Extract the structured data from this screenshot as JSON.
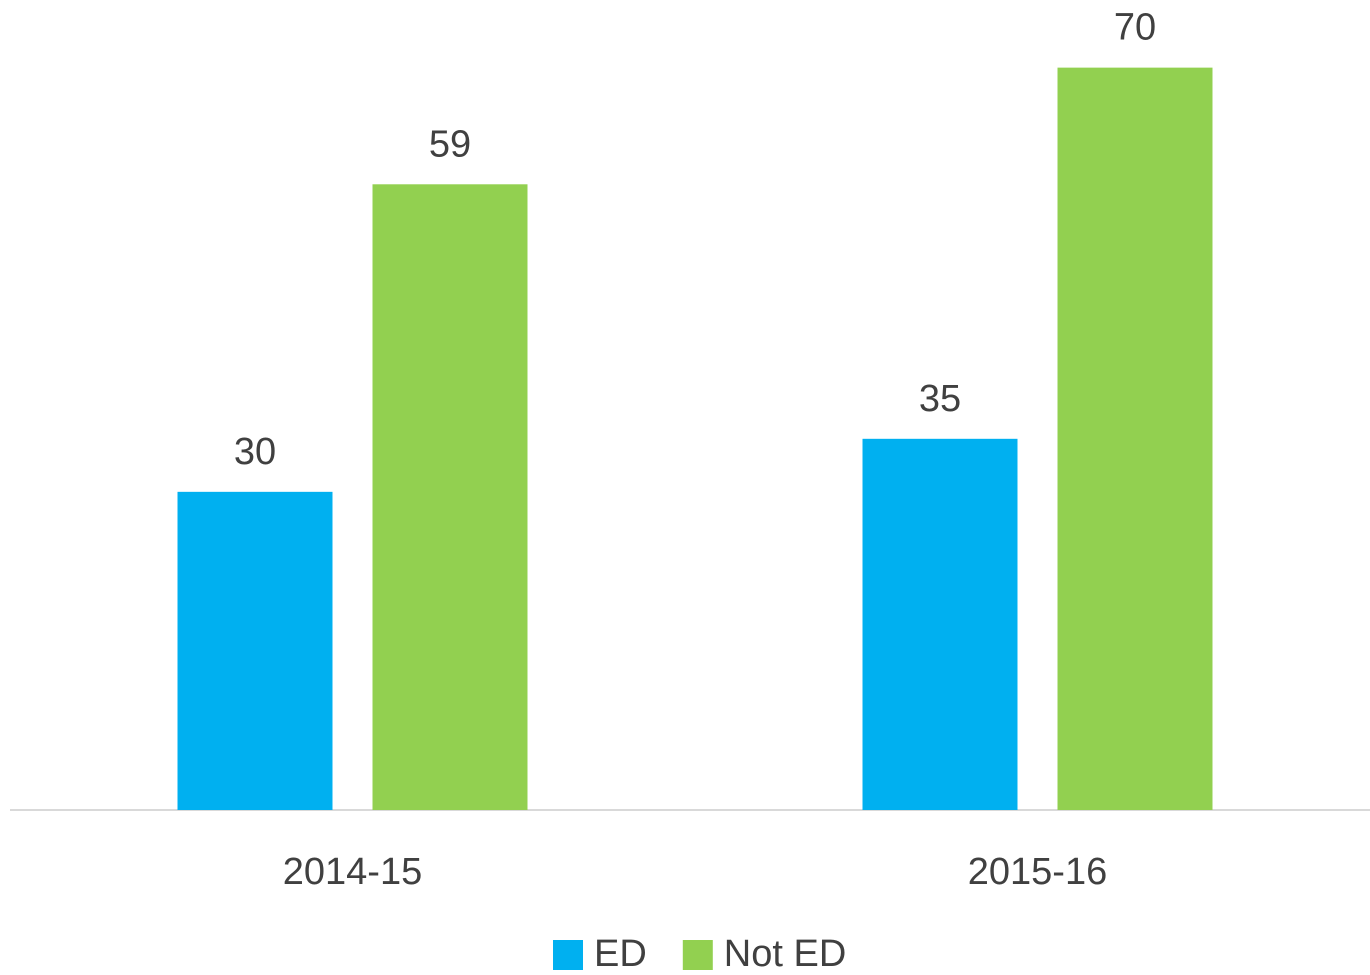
{
  "chart_data": {
    "type": "bar",
    "categories": [
      "2014-15",
      "2015-16"
    ],
    "series": [
      {
        "name": "ED",
        "color": "#00b0f0",
        "values": [
          30,
          35
        ]
      },
      {
        "name": "Not ED",
        "color": "#92d050",
        "values": [
          59,
          70
        ]
      }
    ],
    "ylim": [
      0,
      76
    ],
    "legend": "bottom"
  }
}
